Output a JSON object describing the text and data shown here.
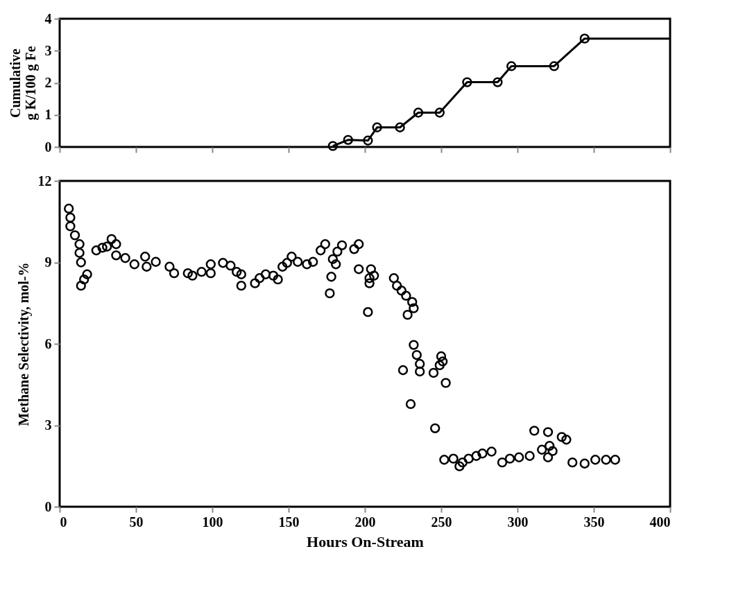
{
  "chart_data": [
    {
      "type": "line",
      "ylabel": "Cumulative\ng K/100 g Fe",
      "xlim": [
        0,
        400
      ],
      "xticks": [
        0,
        50,
        100,
        150,
        200,
        250,
        300,
        350,
        400
      ],
      "ylim": [
        0,
        4
      ],
      "yticks": [
        0,
        1,
        2,
        3,
        4
      ],
      "tick_labels": "y",
      "grid": false,
      "series": [
        {
          "type": "line",
          "marker": "none",
          "color": "#000000",
          "x": [
            179,
            189,
            202,
            208,
            223,
            235,
            249,
            267,
            287,
            296,
            324,
            344,
            400
          ],
          "values": [
            0.03,
            0.22,
            0.2,
            0.61,
            0.61,
            1.07,
            1.07,
            2.02,
            2.02,
            2.52,
            2.52,
            3.38,
            3.38
          ]
        },
        {
          "type": "scatter",
          "marker": "circle",
          "color": "#000000",
          "x": [
            179,
            189,
            202,
            208,
            223,
            235,
            249,
            267,
            287,
            296,
            324,
            344
          ],
          "values": [
            0.03,
            0.22,
            0.2,
            0.61,
            0.61,
            1.07,
            1.07,
            2.02,
            2.02,
            2.52,
            2.52,
            3.38
          ]
        }
      ]
    },
    {
      "type": "scatter",
      "xlabel": "Hours On-Stream",
      "ylabel": "Methane Selectivity, mol-%",
      "xlim": [
        0,
        400
      ],
      "xticks": [
        0,
        50,
        100,
        150,
        200,
        250,
        300,
        350,
        400
      ],
      "ylim": [
        0,
        12
      ],
      "yticks": [
        0,
        3,
        6,
        9,
        12
      ],
      "grid": false,
      "marker": "circle",
      "series": [
        {
          "color": "#000000",
          "x": [
            6,
            7,
            7,
            10,
            13,
            13,
            14,
            18,
            16,
            14,
            34,
            37,
            28,
            24,
            31,
            37,
            43,
            56,
            49,
            63,
            57,
            72,
            75,
            84,
            87,
            93,
            99,
            99,
            107,
            112,
            116,
            119,
            119,
            128,
            131,
            140,
            143,
            135,
            146,
            149,
            152,
            156,
            162,
            166,
            174,
            171,
            185,
            182,
            179,
            181,
            178,
            177,
            196,
            193,
            196,
            206,
            204,
            203,
            203,
            219,
            221,
            224,
            227,
            231,
            232,
            228,
            202,
            232,
            234,
            250,
            251,
            249,
            236,
            245,
            236,
            225,
            253,
            230,
            246,
            311,
            320,
            329,
            332,
            321,
            323,
            320,
            316,
            308,
            301,
            295,
            290,
            283,
            277,
            273,
            268,
            264,
            262,
            258,
            252,
            336,
            344,
            351,
            358,
            364
          ],
          "values": [
            10.98,
            10.65,
            10.33,
            10.0,
            9.67,
            9.35,
            9.0,
            8.56,
            8.37,
            8.14,
            9.86,
            9.67,
            9.54,
            9.44,
            9.58,
            9.26,
            9.16,
            9.21,
            8.93,
            9.02,
            8.84,
            8.84,
            8.6,
            8.6,
            8.51,
            8.65,
            8.6,
            8.93,
            8.98,
            8.88,
            8.65,
            8.56,
            8.14,
            8.23,
            8.42,
            8.51,
            8.37,
            8.56,
            8.84,
            8.98,
            9.21,
            9.02,
            8.93,
            9.02,
            9.67,
            9.44,
            9.63,
            9.4,
            9.12,
            8.93,
            8.47,
            7.86,
            9.67,
            9.49,
            8.75,
            8.51,
            8.75,
            8.23,
            8.42,
            8.42,
            8.14,
            7.96,
            7.77,
            7.54,
            7.31,
            7.07,
            7.17,
            5.96,
            5.59,
            5.54,
            5.35,
            5.21,
            5.26,
            4.93,
            4.98,
            5.03,
            4.56,
            3.78,
            2.89,
            2.8,
            2.75,
            2.57,
            2.47,
            2.24,
            2.05,
            1.82,
            2.1,
            1.87,
            1.82,
            1.77,
            1.63,
            2.03,
            1.96,
            1.87,
            1.77,
            1.63,
            1.49,
            1.77,
            1.73,
            1.63,
            1.59,
            1.73,
            1.73,
            1.73
          ]
        }
      ]
    }
  ]
}
